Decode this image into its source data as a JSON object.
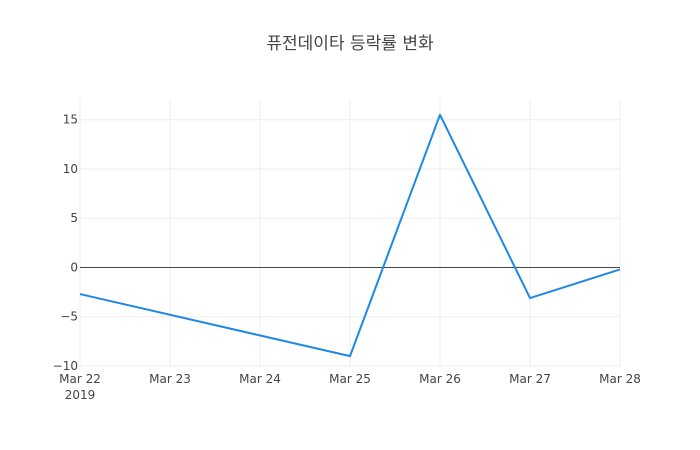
{
  "chart_data": {
    "type": "line",
    "title": "퓨전데이타 등락률 변화",
    "x": [
      "2019-03-22",
      "2019-03-25",
      "2019-03-26",
      "2019-03-27",
      "2019-03-28"
    ],
    "x_tick_labels": [
      "Mar 22",
      "Mar 23",
      "Mar 24",
      "Mar 25",
      "Mar 26",
      "Mar 27",
      "Mar 28"
    ],
    "x_year_label": "2019",
    "xlim": [
      "2019-03-22",
      "2019-03-28"
    ],
    "series": [
      {
        "values": [
          -2.7,
          -9.0,
          15.5,
          -3.1,
          -0.2
        ],
        "color": "#1f88e5"
      }
    ],
    "y_ticks": [
      -10,
      -5,
      0,
      5,
      10,
      15
    ],
    "y_tick_labels": [
      "−10",
      "−5",
      "0",
      "5",
      "10",
      "15"
    ],
    "ylim": [
      -10,
      17
    ],
    "grid": true,
    "legend": false
  }
}
